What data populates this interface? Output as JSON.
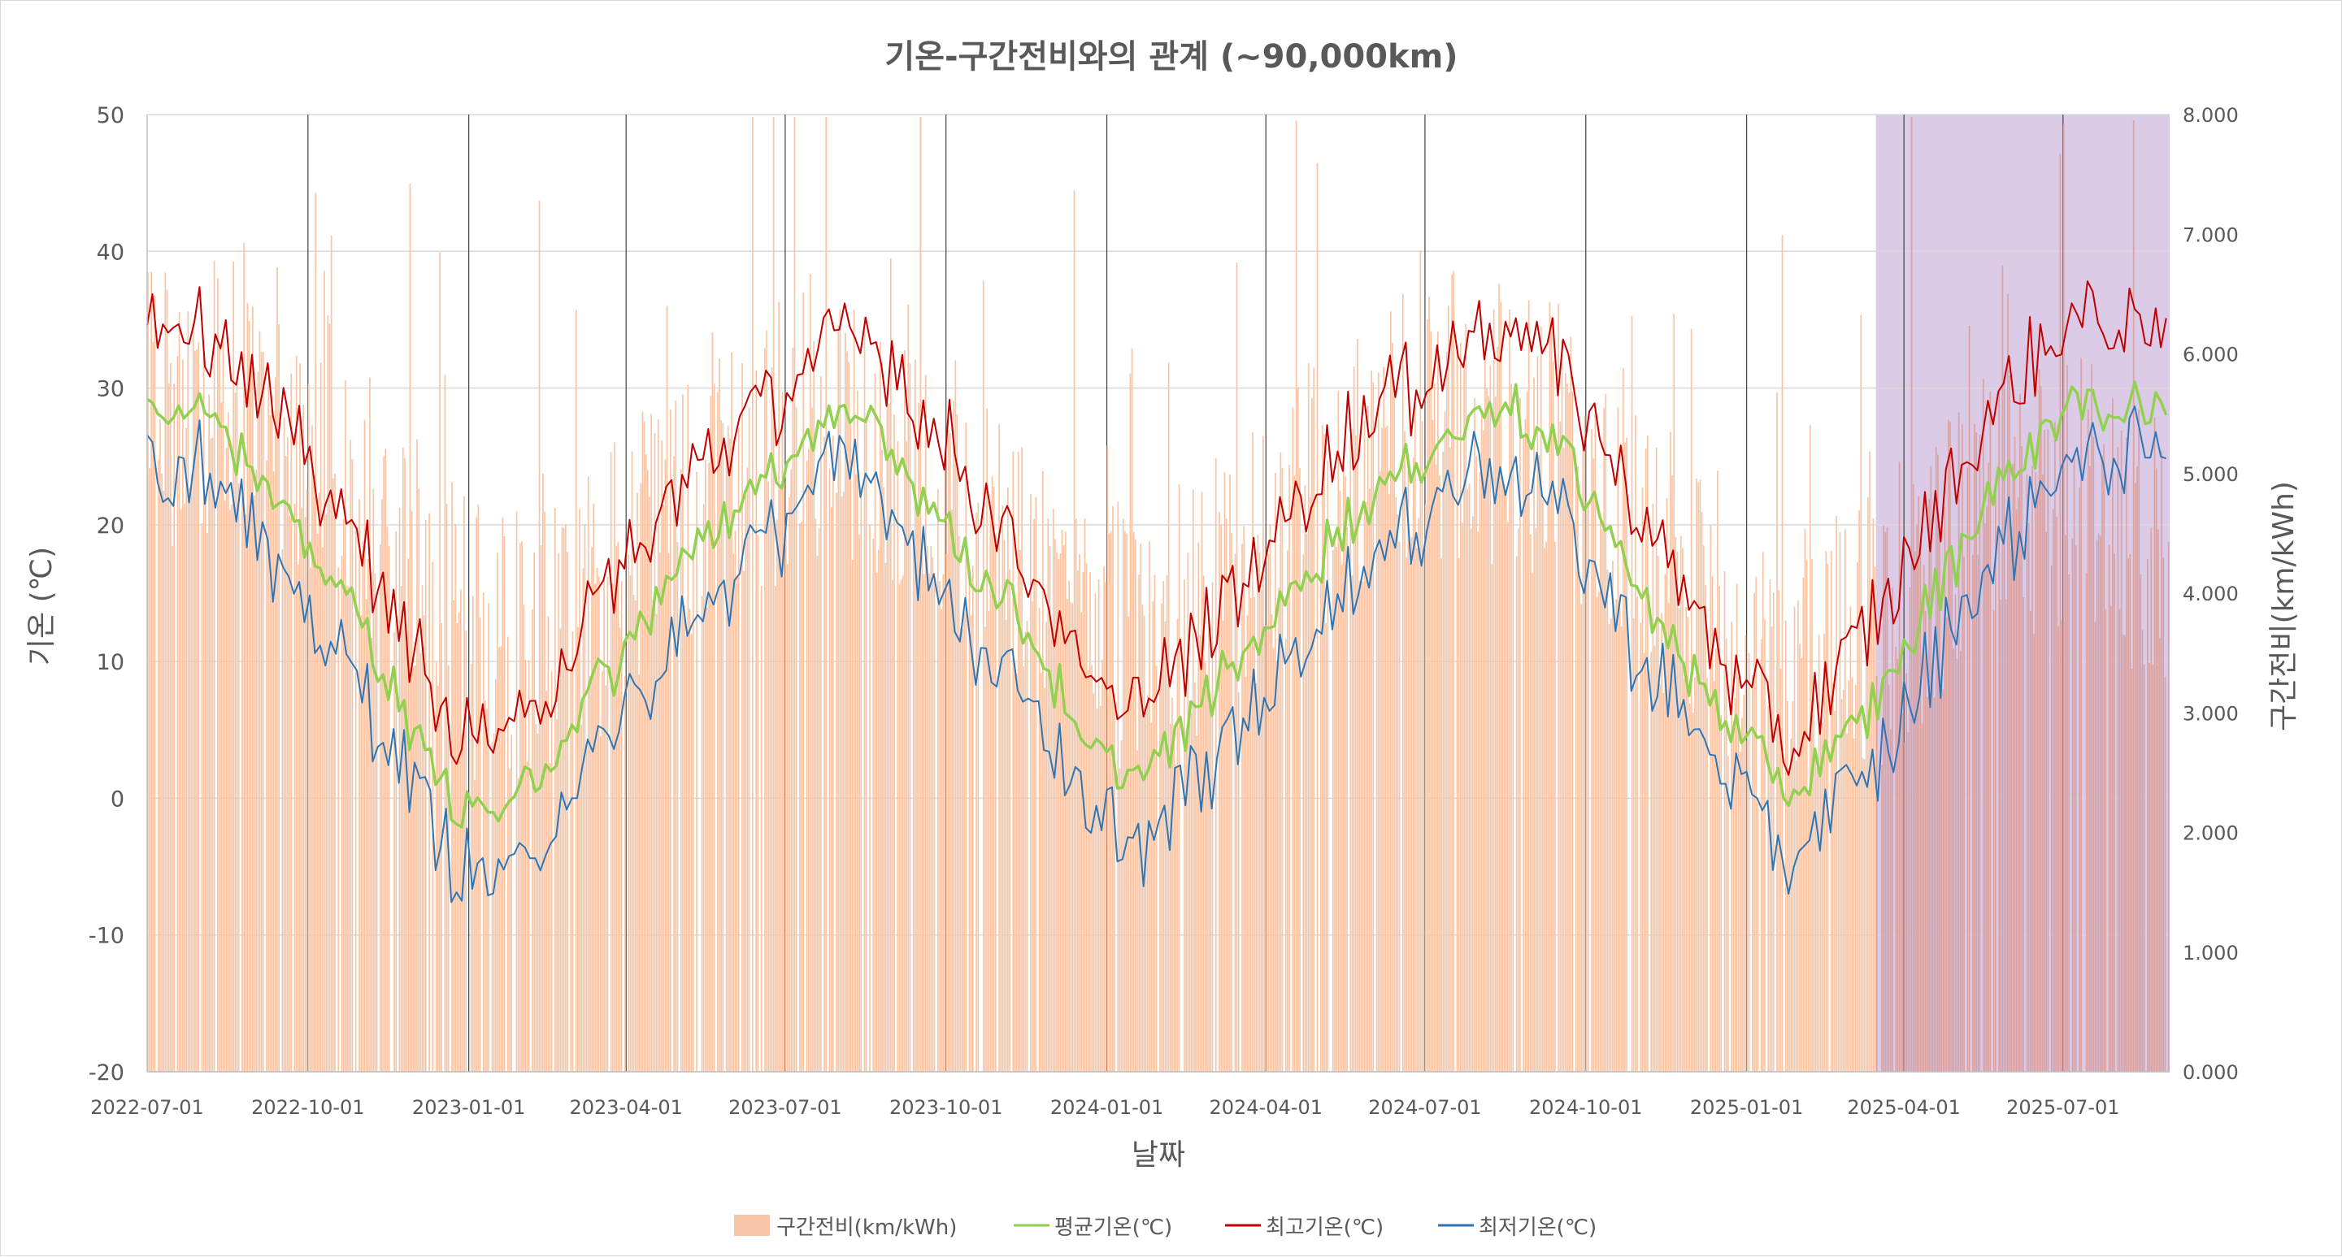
{
  "chart_data": {
    "type": "bar+line",
    "title": "기온-구간전비와의 관계 (~90,000km)",
    "xlabel": "날짜",
    "ylabel_left": "기온 (℃)",
    "ylabel_right": "구간전비(km/kWh)",
    "ylim_left": [
      -20,
      50
    ],
    "ylim_right": [
      0,
      8
    ],
    "x_range": [
      "2022-07-01",
      "2025-08-31"
    ],
    "yticks_left": [
      "50",
      "40",
      "30",
      "20",
      "10",
      "0",
      "-10",
      "-20"
    ],
    "yticks_right": [
      "8.000",
      "7.000",
      "6.000",
      "5.000",
      "4.000",
      "3.000",
      "2.000",
      "1.000",
      "0.000"
    ],
    "xticks": [
      "2022-07-01",
      "2022-10-01",
      "2023-01-01",
      "2023-04-01",
      "2023-07-01",
      "2023-10-01",
      "2024-01-01",
      "2024-04-01",
      "2024-07-01",
      "2024-10-01",
      "2025-01-01",
      "2025-04-01",
      "2025-07-01"
    ],
    "grid": true,
    "shaded_region": {
      "start": "2025-03-16",
      "end": "2025-08-31",
      "color": "#dccbe6"
    },
    "legend_position": "bottom",
    "series": [
      {
        "name": "구간전비(km/kWh)",
        "axis": "right",
        "kind": "bar",
        "color": "#f8c6a6"
      },
      {
        "name": "평균기온(℃)",
        "axis": "left",
        "kind": "line",
        "color": "#92d050"
      },
      {
        "name": "최고기온(℃)",
        "axis": "left",
        "kind": "line",
        "color": "#c00000"
      },
      {
        "name": "최저기온(℃)",
        "axis": "left",
        "kind": "line",
        "color": "#2e75b6"
      }
    ],
    "temperature_keypoints": {
      "x": [
        "2022-07-01",
        "2022-08-05",
        "2022-09-15",
        "2022-11-01",
        "2022-12-20",
        "2023-01-25",
        "2023-03-15",
        "2023-05-15",
        "2023-07-20",
        "2023-08-20",
        "2023-10-10",
        "2023-11-20",
        "2023-12-20",
        "2024-01-25",
        "2024-03-15",
        "2024-05-15",
        "2024-07-20",
        "2024-08-15",
        "2024-09-20",
        "2024-10-20",
        "2024-11-25",
        "2024-12-25",
        "2025-01-25",
        "2025-03-10",
        "2025-04-15",
        "2025-05-20",
        "2025-07-05",
        "2025-08-31"
      ],
      "avg": [
        29,
        29,
        21,
        13,
        0,
        -1,
        8,
        19,
        27,
        28,
        18,
        12,
        3,
        2,
        10,
        20,
        27,
        29,
        25,
        18,
        10,
        5,
        0,
        6,
        14,
        22,
        29,
        28
      ],
      "max": [
        35,
        35,
        27,
        19,
        5,
        4,
        14,
        25,
        32,
        34,
        24,
        17,
        8,
        7,
        15,
        26,
        33,
        35,
        31,
        24,
        15,
        9,
        4,
        12,
        20,
        28,
        35,
        34
      ],
      "min": [
        24,
        25,
        16,
        8,
        -4,
        -6,
        3,
        14,
        23,
        24,
        13,
        7,
        -2,
        -3,
        5,
        15,
        23,
        25,
        21,
        13,
        6,
        1,
        -4,
        1,
        9,
        17,
        25,
        25
      ]
    },
    "efficiency_keypoints": {
      "x": [
        "2022-07-01",
        "2022-09-01",
        "2022-11-15",
        "2023-01-15",
        "2023-03-15",
        "2023-05-15",
        "2023-07-15",
        "2023-09-15",
        "2023-11-15",
        "2024-01-15",
        "2024-03-15",
        "2024-05-15",
        "2024-07-15",
        "2024-09-15",
        "2024-11-15",
        "2025-01-15",
        "2025-03-15",
        "2025-05-15",
        "2025-07-15",
        "2025-08-31"
      ],
      "values": [
        5.5,
        5.8,
        4.6,
        3.4,
        3.9,
        4.9,
        5.4,
        5.2,
        4.2,
        3.5,
        4.1,
        5.1,
        5.5,
        5.3,
        4.3,
        3.3,
        3.7,
        4.6,
        4.9,
        4.2
      ]
    }
  }
}
